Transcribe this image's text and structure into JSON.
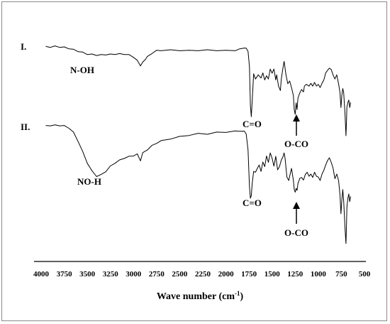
{
  "chart_data": {
    "type": "line",
    "title": "",
    "xlabel": "Wave number (cm⁻¹)",
    "xlabel_main": "Wave number (cm",
    "xlabel_sup": "-1",
    "xlabel_close": ")",
    "ylabel": "",
    "xlim": [
      4000,
      500
    ],
    "x_reversed": true,
    "grid": false,
    "x_ticks": [
      4000,
      3750,
      3500,
      3250,
      3000,
      2750,
      2500,
      2250,
      2000,
      1750,
      1500,
      1250,
      1000,
      750,
      500
    ],
    "x_tick_labels": [
      "4000",
      "3750",
      "3500",
      "3250",
      "3000",
      "2750",
      "2500",
      "2250",
      "2000",
      "1750",
      "1500",
      "1250",
      "1000",
      "750",
      "500"
    ],
    "series": [
      {
        "name": "I.",
        "points": [
          [
            3950,
            0.03
          ],
          [
            3900,
            0.03
          ],
          [
            3850,
            0.02
          ],
          [
            3800,
            0.03
          ],
          [
            3750,
            0.04
          ],
          [
            3700,
            0.06
          ],
          [
            3650,
            0.09
          ],
          [
            3600,
            0.12
          ],
          [
            3550,
            0.15
          ],
          [
            3500,
            0.18
          ],
          [
            3450,
            0.19
          ],
          [
            3400,
            0.2
          ],
          [
            3350,
            0.2
          ],
          [
            3300,
            0.19
          ],
          [
            3250,
            0.19
          ],
          [
            3200,
            0.18
          ],
          [
            3150,
            0.18
          ],
          [
            3100,
            0.18
          ],
          [
            3050,
            0.2
          ],
          [
            3000,
            0.24
          ],
          [
            2960,
            0.32
          ],
          [
            2925,
            0.42
          ],
          [
            2900,
            0.36
          ],
          [
            2870,
            0.28
          ],
          [
            2850,
            0.24
          ],
          [
            2800,
            0.16
          ],
          [
            2750,
            0.11
          ],
          [
            2700,
            0.1
          ],
          [
            2600,
            0.1
          ],
          [
            2500,
            0.1
          ],
          [
            2400,
            0.11
          ],
          [
            2300,
            0.1
          ],
          [
            2200,
            0.1
          ],
          [
            2100,
            0.1
          ],
          [
            2000,
            0.11
          ],
          [
            1900,
            0.1
          ],
          [
            1850,
            0.08
          ],
          [
            1800,
            0.05
          ],
          [
            1780,
            0.06
          ],
          [
            1760,
            0.12
          ],
          [
            1745,
            0.45
          ],
          [
            1735,
            1.25
          ],
          [
            1725,
            1.5
          ],
          [
            1715,
            1.15
          ],
          [
            1700,
            0.6
          ],
          [
            1680,
            0.7
          ],
          [
            1650,
            0.62
          ],
          [
            1620,
            0.68
          ],
          [
            1600,
            0.58
          ],
          [
            1580,
            0.72
          ],
          [
            1560,
            0.64
          ],
          [
            1540,
            0.7
          ],
          [
            1520,
            0.5
          ],
          [
            1500,
            0.58
          ],
          [
            1480,
            0.5
          ],
          [
            1460,
            0.72
          ],
          [
            1450,
            0.62
          ],
          [
            1430,
            0.85
          ],
          [
            1410,
            0.95
          ],
          [
            1400,
            0.7
          ],
          [
            1380,
            0.45
          ],
          [
            1370,
            0.33
          ],
          [
            1350,
            0.62
          ],
          [
            1330,
            0.8
          ],
          [
            1310,
            0.75
          ],
          [
            1290,
            0.88
          ],
          [
            1270,
            1.05
          ],
          [
            1260,
            1.35
          ],
          [
            1250,
            1.45
          ],
          [
            1240,
            1.2
          ],
          [
            1230,
            1.35
          ],
          [
            1220,
            1.1
          ],
          [
            1200,
            1.0
          ],
          [
            1180,
            0.92
          ],
          [
            1160,
            0.98
          ],
          [
            1150,
            0.85
          ],
          [
            1130,
            0.82
          ],
          [
            1100,
            0.85
          ],
          [
            1080,
            0.8
          ],
          [
            1060,
            0.85
          ],
          [
            1040,
            0.78
          ],
          [
            1020,
            0.85
          ],
          [
            1000,
            0.82
          ],
          [
            980,
            0.88
          ],
          [
            960,
            0.8
          ],
          [
            940,
            0.72
          ],
          [
            920,
            0.58
          ],
          [
            900,
            0.52
          ],
          [
            880,
            0.48
          ],
          [
            860,
            0.5
          ],
          [
            840,
            0.62
          ],
          [
            820,
            0.7
          ],
          [
            800,
            0.62
          ],
          [
            780,
            0.8
          ],
          [
            765,
            1.0
          ],
          [
            755,
            1.3
          ],
          [
            745,
            1.05
          ],
          [
            735,
            0.9
          ],
          [
            725,
            1.0
          ],
          [
            710,
            1.45
          ],
          [
            700,
            1.9
          ],
          [
            695,
            1.6
          ],
          [
            690,
            1.3
          ],
          [
            680,
            1.2
          ],
          [
            670,
            1.15
          ],
          [
            660,
            1.3
          ],
          [
            650,
            1.2
          ]
        ]
      },
      {
        "name": "II.",
        "points": [
          [
            3950,
            0.05
          ],
          [
            3900,
            0.04
          ],
          [
            3850,
            0.04
          ],
          [
            3800,
            0.04
          ],
          [
            3750,
            0.05
          ],
          [
            3700,
            0.08
          ],
          [
            3650,
            0.16
          ],
          [
            3600,
            0.3
          ],
          [
            3550,
            0.48
          ],
          [
            3500,
            0.66
          ],
          [
            3450,
            0.8
          ],
          [
            3400,
            0.88
          ],
          [
            3350,
            0.86
          ],
          [
            3300,
            0.8
          ],
          [
            3250,
            0.72
          ],
          [
            3200,
            0.66
          ],
          [
            3150,
            0.62
          ],
          [
            3100,
            0.58
          ],
          [
            3050,
            0.56
          ],
          [
            3000,
            0.54
          ],
          [
            2960,
            0.52
          ],
          [
            2925,
            0.62
          ],
          [
            2900,
            0.5
          ],
          [
            2850,
            0.44
          ],
          [
            2800,
            0.38
          ],
          [
            2750,
            0.33
          ],
          [
            2700,
            0.3
          ],
          [
            2600,
            0.26
          ],
          [
            2500,
            0.23
          ],
          [
            2400,
            0.2
          ],
          [
            2300,
            0.18
          ],
          [
            2200,
            0.18
          ],
          [
            2100,
            0.16
          ],
          [
            2000,
            0.15
          ],
          [
            1900,
            0.14
          ],
          [
            1850,
            0.13
          ],
          [
            1800,
            0.14
          ],
          [
            1780,
            0.18
          ],
          [
            1760,
            0.45
          ],
          [
            1745,
            1.05
          ],
          [
            1735,
            1.25
          ],
          [
            1725,
            1.2
          ],
          [
            1715,
            1.0
          ],
          [
            1700,
            0.8
          ],
          [
            1680,
            0.82
          ],
          [
            1660,
            0.75
          ],
          [
            1640,
            0.7
          ],
          [
            1620,
            0.8
          ],
          [
            1600,
            0.65
          ],
          [
            1580,
            0.72
          ],
          [
            1560,
            0.55
          ],
          [
            1540,
            0.65
          ],
          [
            1520,
            0.5
          ],
          [
            1500,
            0.58
          ],
          [
            1480,
            0.72
          ],
          [
            1460,
            0.55
          ],
          [
            1440,
            0.78
          ],
          [
            1420,
            0.72
          ],
          [
            1400,
            0.62
          ],
          [
            1380,
            0.55
          ],
          [
            1370,
            0.5
          ],
          [
            1360,
            0.58
          ],
          [
            1340,
            0.9
          ],
          [
            1320,
            0.95
          ],
          [
            1300,
            0.82
          ],
          [
            1290,
            0.75
          ],
          [
            1270,
            0.95
          ],
          [
            1260,
            1.1
          ],
          [
            1250,
            1.15
          ],
          [
            1240,
            1.08
          ],
          [
            1230,
            1.12
          ],
          [
            1220,
            1.0
          ],
          [
            1200,
            0.92
          ],
          [
            1180,
            0.9
          ],
          [
            1160,
            0.95
          ],
          [
            1140,
            0.85
          ],
          [
            1120,
            0.82
          ],
          [
            1100,
            0.88
          ],
          [
            1080,
            0.85
          ],
          [
            1060,
            0.9
          ],
          [
            1040,
            0.82
          ],
          [
            1020,
            0.88
          ],
          [
            1000,
            0.9
          ],
          [
            980,
            0.95
          ],
          [
            960,
            0.85
          ],
          [
            940,
            0.78
          ],
          [
            920,
            0.7
          ],
          [
            900,
            0.62
          ],
          [
            880,
            0.58
          ],
          [
            860,
            0.65
          ],
          [
            840,
            0.75
          ],
          [
            820,
            0.92
          ],
          [
            800,
            0.85
          ],
          [
            780,
            0.95
          ],
          [
            765,
            1.2
          ],
          [
            755,
            1.5
          ],
          [
            745,
            1.28
          ],
          [
            735,
            1.1
          ],
          [
            725,
            1.3
          ],
          [
            710,
            1.75
          ],
          [
            700,
            2.0
          ],
          [
            695,
            1.7
          ],
          [
            690,
            1.4
          ],
          [
            680,
            1.25
          ],
          [
            670,
            1.18
          ],
          [
            660,
            1.3
          ],
          [
            650,
            1.22
          ]
        ]
      }
    ],
    "annotations": [
      {
        "text": "I.",
        "series": "I.",
        "kind": "curve-label"
      },
      {
        "text": "N-OH",
        "series": "I.",
        "kind": "label"
      },
      {
        "text": "C=O",
        "series": "I.",
        "kind": "label"
      },
      {
        "text": "O-CO",
        "series": "I.",
        "kind": "arrow-label"
      },
      {
        "text": "II.",
        "series": "II.",
        "kind": "curve-label"
      },
      {
        "text": "NO-H",
        "series": "II.",
        "kind": "label"
      },
      {
        "text": "C=O",
        "series": "II.",
        "kind": "label"
      },
      {
        "text": "O-CO",
        "series": "II.",
        "kind": "arrow-label"
      }
    ]
  }
}
